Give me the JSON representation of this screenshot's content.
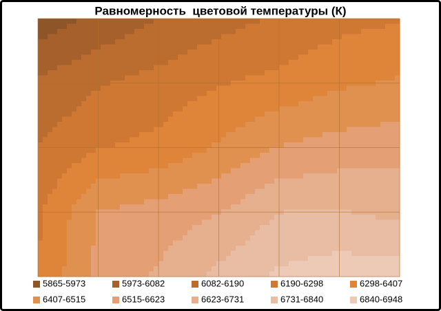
{
  "chart_data": {
    "type": "contour",
    "title": "Равномерность  цветовой температуры (К)",
    "levels": [
      5865,
      5973,
      6082,
      6190,
      6298,
      6407,
      6515,
      6623,
      6731,
      6840,
      6948
    ],
    "series": [
      {
        "name": "5865-5973",
        "color": "#8e5628"
      },
      {
        "name": "5973-6082",
        "color": "#a5602b"
      },
      {
        "name": "6082-6190",
        "color": "#bb6c2f"
      },
      {
        "name": "6190-6298",
        "color": "#cf7834"
      },
      {
        "name": "6298-6407",
        "color": "#de853a"
      },
      {
        "name": "6407-6515",
        "color": "#e0904f"
      },
      {
        "name": "6515-6623",
        "color": "#e4a074"
      },
      {
        "name": "6623-6731",
        "color": "#e6b08f"
      },
      {
        "name": "6731-6840",
        "color": "#e8bda3"
      },
      {
        "name": "6840-6948",
        "color": "#eccab5"
      }
    ],
    "z": [
      [
        5900,
        6000,
        6080,
        6150,
        6200,
        6260,
        6290
      ],
      [
        6100,
        6180,
        6230,
        6290,
        6330,
        6390,
        6420
      ],
      [
        6190,
        6290,
        6330,
        6420,
        6520,
        6560,
        6580
      ],
      [
        6280,
        6520,
        6560,
        6620,
        6730,
        6740,
        6700
      ],
      [
        6300,
        6550,
        6640,
        6760,
        6860,
        6900,
        6900
      ]
    ],
    "grid": true
  }
}
